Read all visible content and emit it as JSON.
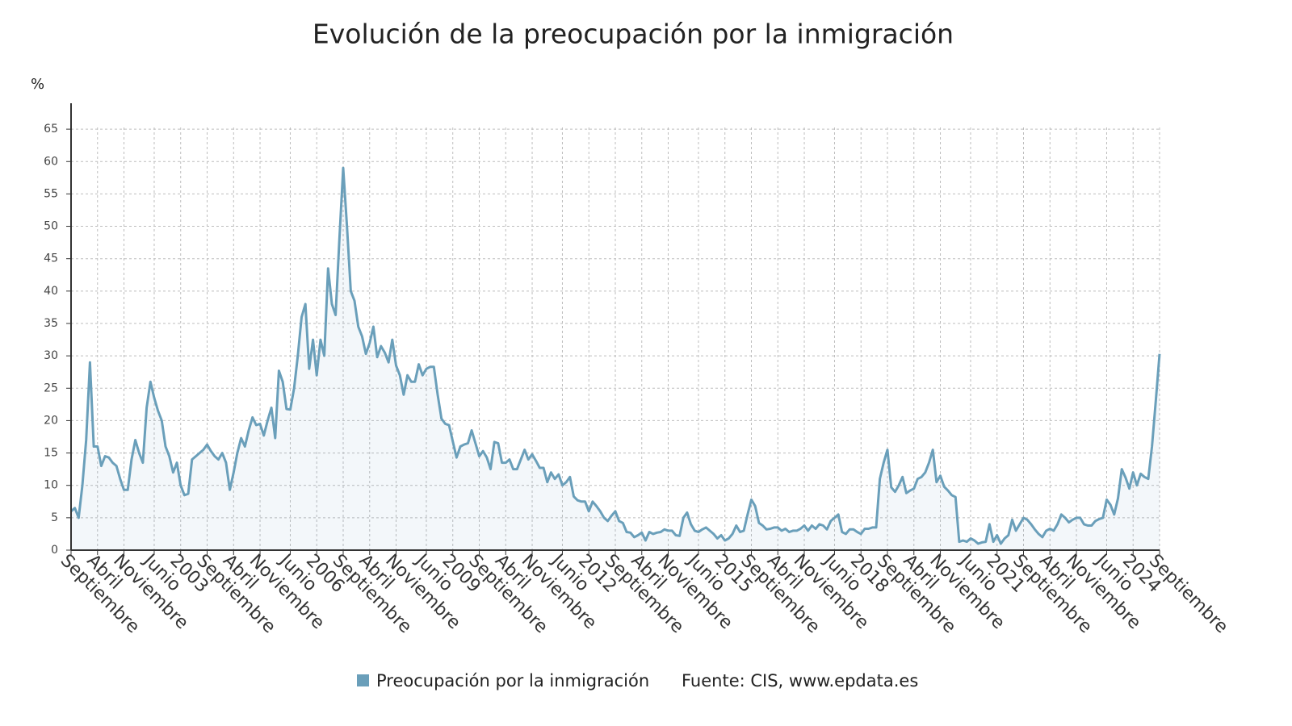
{
  "chart_data": {
    "type": "line",
    "title": "Evolución de la preocupación por la inmigración",
    "y_unit": "%",
    "source": "Fuente: CIS, www.epdata.es",
    "ylim": [
      0,
      69
    ],
    "yticks": [
      0,
      5,
      10,
      15,
      20,
      25,
      30,
      35,
      40,
      45,
      50,
      55,
      60,
      65
    ],
    "grid": true,
    "categories": [
      "Septiembre",
      null,
      null,
      null,
      null,
      null,
      null,
      "Abril",
      null,
      null,
      null,
      null,
      null,
      null,
      "Noviembre",
      null,
      null,
      null,
      null,
      null,
      null,
      null,
      "Junio",
      null,
      null,
      null,
      null,
      null,
      null,
      "2003",
      null,
      null,
      null,
      null,
      null,
      null,
      "Septiembre",
      null,
      null,
      null,
      null,
      null,
      null,
      "Abril",
      null,
      null,
      null,
      null,
      null,
      null,
      "Noviembre",
      null,
      null,
      null,
      null,
      null,
      null,
      null,
      "Junio",
      null,
      null,
      null,
      null,
      null,
      null,
      "2006",
      null,
      null,
      null,
      null,
      null,
      null,
      "Septiembre",
      null,
      null,
      null,
      null,
      null,
      null,
      "Abril",
      null,
      null,
      null,
      null,
      null,
      null,
      "Noviembre",
      null,
      null,
      null,
      null,
      null,
      null,
      null,
      "Junio",
      null,
      null,
      null,
      null,
      null,
      null,
      "2009",
      null,
      null,
      null,
      null,
      null,
      null,
      "Septiembre",
      null,
      null,
      null,
      null,
      null,
      null,
      "Abril",
      null,
      null,
      null,
      null,
      null,
      null,
      "Noviembre",
      null,
      null,
      null,
      null,
      null,
      null,
      null,
      "Junio",
      null,
      null,
      null,
      null,
      null,
      null,
      "2012",
      null,
      null,
      null,
      null,
      null,
      null,
      "Septiembre",
      null,
      null,
      null,
      null,
      null,
      null,
      "Abril",
      null,
      null,
      null,
      null,
      null,
      null,
      "Noviembre",
      null,
      null,
      null,
      null,
      null,
      null,
      null,
      "Junio",
      null,
      null,
      null,
      null,
      null,
      null,
      "2015",
      null,
      null,
      null,
      null,
      null,
      null,
      "Septiembre",
      null,
      null,
      null,
      null,
      null,
      null,
      "Abril",
      null,
      null,
      null,
      null,
      null,
      null,
      "Noviembre",
      null,
      null,
      null,
      null,
      null,
      null,
      null,
      "Junio",
      null,
      null,
      null,
      null,
      null,
      null,
      "2018",
      null,
      null,
      null,
      null,
      null,
      null,
      "Septiembre",
      null,
      null,
      null,
      null,
      null,
      null,
      "Abril",
      null,
      null,
      null,
      null,
      null,
      null,
      "Noviembre",
      null,
      null,
      null,
      null,
      null,
      null,
      null,
      "Junio",
      null,
      null,
      null,
      null,
      null,
      null,
      "2021",
      null,
      null,
      null,
      null,
      null,
      null,
      "Septiembre",
      null,
      null,
      null,
      null,
      null,
      null,
      "Abril",
      null,
      null,
      null,
      null,
      null,
      null,
      "Noviembre",
      null,
      null,
      null,
      null,
      null,
      null,
      null,
      "Junio",
      null,
      null,
      null,
      null,
      null,
      null,
      "2024",
      null,
      null,
      null,
      null,
      null,
      null,
      "Septiembre"
    ],
    "series": [
      {
        "name": "Preocupación por la inmigración",
        "color": "#6a9fba",
        "values": [
          6,
          6.5,
          5,
          10,
          17,
          29,
          16,
          16,
          13,
          14.5,
          14.3,
          13.5,
          13,
          11,
          9.3,
          9.3,
          14,
          17,
          15,
          13.5,
          22,
          26,
          23.5,
          21.5,
          20,
          16,
          14.5,
          12,
          13.5,
          10,
          8.5,
          8.7,
          14,
          14.5,
          15,
          15.5,
          16.3,
          15.3,
          14.5,
          14,
          15,
          13.5,
          9.3,
          12,
          15,
          17.3,
          16,
          18.5,
          20.5,
          19.3,
          19.5,
          17.7,
          20,
          22,
          17.3,
          27.7,
          26,
          21.8,
          21.7,
          25,
          30,
          36,
          38,
          28,
          32.5,
          27,
          32.5,
          30,
          43.5,
          38,
          36.3,
          48,
          59,
          50,
          40,
          38.5,
          34.5,
          33,
          30.3,
          32,
          34.5,
          29.8,
          31.5,
          30.5,
          29,
          32.5,
          28.5,
          27,
          24,
          27,
          26,
          26,
          28.7,
          27,
          28,
          28.3,
          28.3,
          24,
          20.3,
          19.5,
          19.3,
          16.8,
          14.3,
          16,
          16.3,
          16.5,
          18.5,
          16.5,
          14.5,
          15.3,
          14.3,
          12.5,
          16.7,
          16.5,
          13.5,
          13.5,
          14,
          12.5,
          12.5,
          14,
          15.5,
          14,
          14.8,
          13.8,
          12.7,
          12.7,
          10.5,
          12,
          11,
          11.7,
          10,
          10.5,
          11.3,
          8.3,
          7.7,
          7.5,
          7.5,
          6,
          7.5,
          6.8,
          6,
          5,
          4.5,
          5.3,
          6,
          4.5,
          4.2,
          2.8,
          2.7,
          2,
          2.3,
          2.7,
          1.5,
          2.8,
          2.5,
          2.7,
          2.8,
          3.2,
          3,
          3,
          2.3,
          2.2,
          5,
          5.8,
          4,
          3,
          2.8,
          3.2,
          3.5,
          3,
          2.5,
          1.8,
          2.3,
          1.5,
          1.8,
          2.5,
          3.8,
          2.8,
          3,
          5.5,
          7.8,
          6.8,
          4.2,
          3.8,
          3.2,
          3.3,
          3.5,
          3.5,
          3,
          3.3,
          2.8,
          3,
          3,
          3.3,
          3.8,
          3,
          3.8,
          3.3,
          4,
          3.8,
          3.2,
          4.5,
          5,
          5.5,
          2.8,
          2.5,
          3.2,
          3.2,
          2.8,
          2.5,
          3.3,
          3.3,
          3.5,
          3.5,
          11,
          13.5,
          15.5,
          9.7,
          9,
          10,
          11.3,
          8.8,
          9.2,
          9.5,
          11,
          11.3,
          12,
          13.5,
          15.5,
          10.5,
          11.5,
          9.8,
          9.2,
          8.5,
          8.2,
          1.3,
          1.5,
          1.3,
          1.8,
          1.5,
          1,
          1.2,
          1.3,
          4,
          1.3,
          2.3,
          1,
          1.8,
          2.3,
          4.7,
          3,
          4,
          5,
          4.7,
          4,
          3.2,
          2.5,
          2,
          3,
          3.3,
          3,
          4,
          5.5,
          5,
          4.3,
          4.7,
          5,
          5,
          4,
          3.8,
          3.8,
          4.5,
          4.8,
          5,
          7.8,
          7,
          5.5,
          8,
          12.5,
          11.2,
          9.5,
          12,
          10,
          11.8,
          11.3,
          11,
          16,
          23,
          30.3
        ]
      }
    ]
  }
}
